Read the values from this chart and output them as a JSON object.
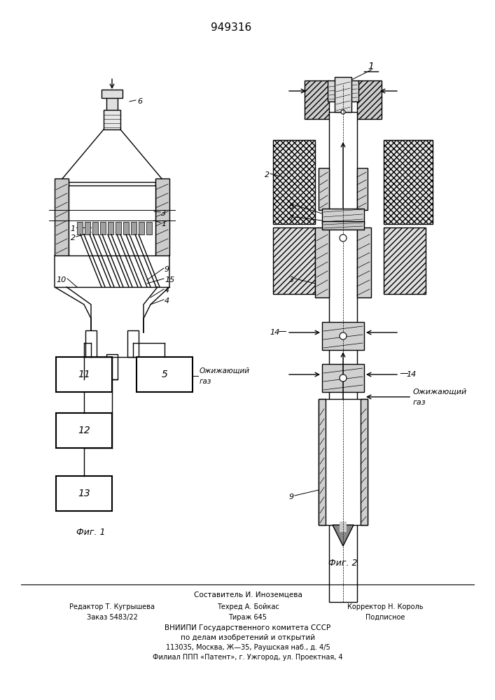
{
  "patent_number": "949316",
  "background_color": "#ffffff",
  "line_color": "#000000",
  "fig1_label": "Фиг. 1",
  "fig2_label": "Фиг. 2",
  "ozhizh": "Ожижающий",
  "gaz": "газ",
  "footer_line1": "Составитель И. Иноземцева",
  "footer_line2": "Редактор Т. Кугрышева",
  "footer_line2b": "Техред А. Бойкас",
  "footer_line2c": "Корректор Н. Король",
  "footer_line3": "Заказ 5483/22",
  "footer_line3b": "Тираж 645",
  "footer_line3c": "Подписное",
  "footer_line4": "ВНИИПИ Государственного комитета СССР",
  "footer_line5": "по делам изобретений и открытий",
  "footer_line6": "113035, Москва, Ж—35, Раушская наб., д. 4/5",
  "footer_line7": "Филиал ППП «Патент», г. Ужгород, ул. Проектная, 4"
}
